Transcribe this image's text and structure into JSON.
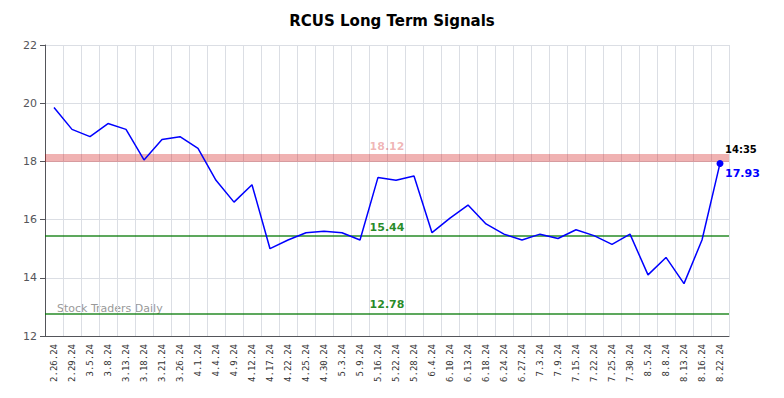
{
  "chart_data": {
    "type": "line",
    "title": "RCUS Long Term Signals",
    "categories": [
      "2.26.24",
      "2.29.24",
      "3.5.24",
      "3.8.24",
      "3.13.24",
      "3.18.24",
      "3.21.24",
      "3.26.24",
      "4.1.24",
      "4.4.24",
      "4.9.24",
      "4.12.24",
      "4.17.24",
      "4.22.24",
      "4.25.24",
      "4.30.24",
      "5.3.24",
      "5.9.24",
      "5.16.24",
      "5.22.24",
      "5.28.24",
      "6.4.24",
      "6.10.24",
      "6.13.24",
      "6.18.24",
      "6.24.24",
      "6.27.24",
      "7.3.24",
      "7.9.24",
      "7.15.24",
      "7.22.24",
      "7.25.24",
      "7.30.24",
      "8.5.24",
      "8.8.24",
      "8.13.24",
      "8.16.24",
      "8.22.24"
    ],
    "values": [
      19.85,
      19.1,
      18.85,
      19.3,
      19.1,
      18.05,
      18.75,
      18.85,
      18.45,
      17.35,
      16.6,
      17.2,
      15.0,
      15.3,
      15.55,
      15.6,
      15.55,
      15.3,
      17.45,
      17.35,
      17.5,
      15.55,
      16.05,
      16.5,
      15.85,
      15.5,
      15.3,
      15.5,
      15.35,
      15.65,
      15.45,
      15.15,
      15.5,
      14.1,
      14.7,
      13.8,
      15.3,
      17.93
    ],
    "color": "#0000ff",
    "ylim": [
      12,
      22
    ],
    "yticks": [
      12,
      14,
      16,
      18,
      20,
      22
    ],
    "grid": true,
    "hlines": [
      {
        "y": 18.12,
        "color": "#cc0000"
      },
      {
        "y": 15.44,
        "color": "#007700"
      },
      {
        "y": 12.78,
        "color": "#007700"
      }
    ],
    "annotations": [
      {
        "text": "14:35",
        "category": "8.22.24",
        "y": 17.93,
        "color": "#000000"
      },
      {
        "text": "17.93",
        "category": "8.22.24",
        "y": 17.93,
        "color": "#0000ff"
      }
    ],
    "watermark": "Stock Traders Daily"
  }
}
